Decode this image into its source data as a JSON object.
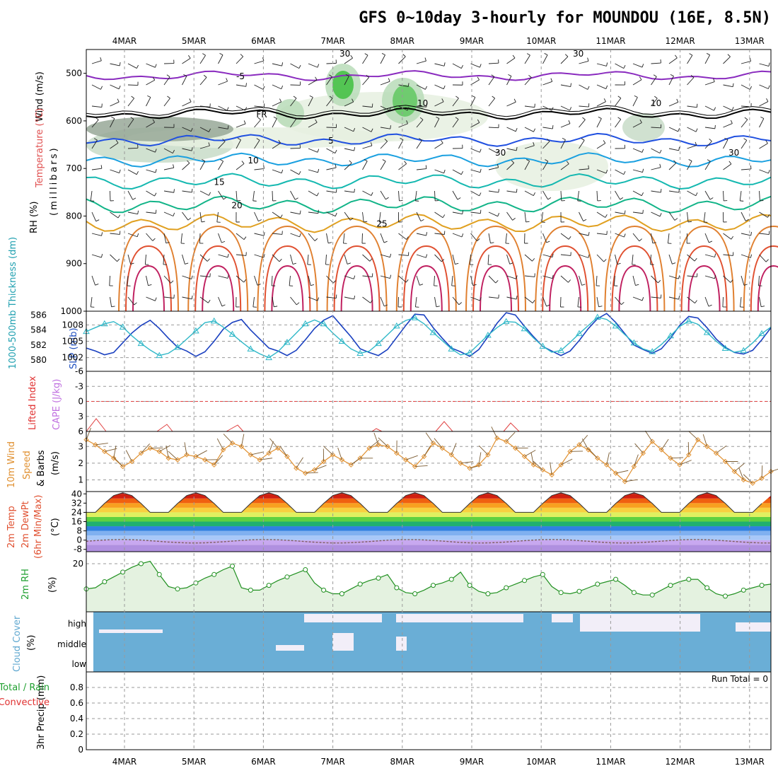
{
  "chart_data": {
    "type": "meteogram",
    "title": "GFS 0~10day 3-hourly for MOUNDOU (16E, 8.5N)",
    "x_dates": [
      "4MAR",
      "5MAR",
      "6MAR",
      "7MAR",
      "8MAR",
      "9MAR",
      "10MAR",
      "11MAR",
      "12MAR",
      "13MAR"
    ],
    "panels": {
      "upper_air": {
        "labels": [
          "Wind (m/s)",
          "Temperature (°C)",
          "RH (%)",
          "(millibars)"
        ],
        "y_ticks": [
          "500",
          "600",
          "700",
          "800",
          "900",
          "1000"
        ],
        "y_range": [
          450,
          1000
        ],
        "isotherms": [
          {
            "label": "-5",
            "level": 505,
            "color": "#8a2bbf"
          },
          {
            "label": "FR",
            "level": 585,
            "color": "#000000"
          },
          {
            "label": "5",
            "level": 640,
            "color": "#2050e0"
          },
          {
            "label": "10",
            "level": 682,
            "color": "#1aa0e0"
          },
          {
            "label": "15",
            "level": 727,
            "color": "#14b8b0"
          },
          {
            "label": "20",
            "level": 776,
            "color": "#12b488"
          },
          {
            "label": "25",
            "level": 815,
            "color": "#e0a020"
          }
        ],
        "rh_contour_labels": [
          "30",
          "10",
          "30",
          "30",
          "10",
          "30",
          "10"
        ]
      },
      "slp_thickness": {
        "labels": [
          "SLP (mb)",
          "1000-500mb Thickness (dm)"
        ],
        "thickness_ticks": [
          "586",
          "584",
          "582",
          "580"
        ],
        "slp_ticks": [
          "1008",
          "1005",
          "1002"
        ],
        "thickness_range": [
          578.5,
          586.5
        ],
        "slp_range": [
          999.5,
          1010.5
        ],
        "thickness": [
          581.6,
          581.2,
          580.7,
          581.0,
          582.3,
          583.6,
          584.6,
          585.3,
          584.2,
          582.9,
          581.7,
          581.2,
          580.5,
          581.1,
          582.5,
          584.1,
          585.0,
          585.4,
          584.0,
          582.8,
          581.6,
          581.2,
          580.6,
          581.3,
          582.7,
          584.2,
          585.3,
          585.9,
          584.5,
          583.1,
          581.5,
          581.0,
          580.6,
          581.4,
          583.0,
          584.6,
          586.1,
          586.0,
          584.3,
          582.9,
          581.6,
          581.1,
          580.5,
          581.4,
          583.1,
          584.9,
          586.3,
          586.0,
          584.5,
          583.1,
          581.8,
          581.2,
          580.6,
          581.2,
          582.6,
          584.2,
          585.5,
          586.2,
          585.0,
          583.5,
          582.0,
          581.4,
          580.9,
          581.5,
          582.9,
          584.6,
          585.8,
          585.6,
          584.3,
          582.8,
          581.7,
          581.0,
          580.8,
          581.3,
          582.7,
          584.3
        ],
        "slp": [
          1006.8,
          1007.5,
          1008.2,
          1008.6,
          1007.6,
          1006.0,
          1004.6,
          1003.4,
          1002.4,
          1002.8,
          1003.9,
          1005.4,
          1006.9,
          1008.4,
          1008.7,
          1007.6,
          1006.3,
          1004.9,
          1003.6,
          1002.7,
          1002.0,
          1003.1,
          1004.8,
          1006.5,
          1008.2,
          1008.9,
          1008.2,
          1006.5,
          1005.0,
          1003.6,
          1002.8,
          1003.2,
          1004.6,
          1006.2,
          1007.8,
          1008.8,
          1009.3,
          1008.2,
          1006.6,
          1005.1,
          1003.6,
          1002.5,
          1002.9,
          1004.5,
          1006.1,
          1007.5,
          1008.6,
          1008.5,
          1007.3,
          1005.6,
          1004.1,
          1003.0,
          1003.3,
          1004.8,
          1006.4,
          1007.9,
          1009.4,
          1009.0,
          1007.8,
          1006.2,
          1004.7,
          1003.6,
          1003.1,
          1004.4,
          1006.0,
          1007.7,
          1008.7,
          1008.1,
          1006.6,
          1005.0,
          1003.7,
          1003.0,
          1003.3,
          1004.7,
          1006.4,
          1007.6
        ]
      },
      "cape_li": {
        "labels": [
          "Lifted Index",
          "CAPE (J/kg)"
        ],
        "y_ticks": [
          "-6",
          "-3",
          "0",
          "3",
          "6"
        ],
        "y_range": [
          -6,
          6
        ]
      },
      "wind10m": {
        "labels": [
          "10m Wind",
          "Speed",
          "& Barbs",
          "(m/s)"
        ],
        "y_ticks": [
          "1",
          "2",
          "3"
        ],
        "y_range": [
          0.3,
          3.9
        ],
        "speed": [
          3.4,
          3.1,
          2.7,
          2.3,
          1.8,
          2.1,
          2.6,
          2.9,
          2.7,
          2.3,
          2.2,
          2.5,
          2.4,
          2.2,
          1.9,
          2.8,
          3.2,
          3.0,
          2.5,
          2.2,
          2.6,
          2.9,
          2.4,
          1.7,
          1.4,
          1.6,
          2.1,
          2.5,
          2.2,
          1.9,
          2.3,
          2.9,
          3.1,
          3.0,
          2.6,
          2.2,
          1.8,
          2.4,
          3.2,
          2.9,
          2.5,
          2.0,
          1.7,
          1.9,
          2.5,
          3.5,
          3.3,
          2.9,
          2.4,
          1.9,
          1.6,
          1.3,
          1.9,
          2.7,
          3.1,
          2.8,
          2.3,
          1.9,
          1.4,
          0.9,
          1.8,
          2.6,
          3.3,
          2.8,
          2.3,
          1.9,
          2.5,
          3.4,
          3.0,
          2.6,
          2.1,
          1.5,
          1.0,
          0.8,
          1.1,
          1.5
        ]
      },
      "temp2m": {
        "labels": [
          "2m Temp",
          "2m DewPt",
          "(6hr Min/Max)",
          "(°C)"
        ],
        "y_ticks": [
          "40",
          "32",
          "24",
          "16",
          "8",
          "0",
          "-8"
        ],
        "y_range": [
          -10,
          42
        ],
        "diurnal_max": 41,
        "diurnal_min": 24,
        "dewpoint_mean": -1
      },
      "rh2m": {
        "labels": [
          "2m RH",
          "(%)"
        ],
        "y_ticks": [
          "20"
        ],
        "y_range": [
          0,
          25
        ],
        "values": [
          9.5,
          10.0,
          12.5,
          14.5,
          16.5,
          18.5,
          20.0,
          21.0,
          15.5,
          10.5,
          9.5,
          10.0,
          12.0,
          14.0,
          15.5,
          17.5,
          19.0,
          10.0,
          9.0,
          9.0,
          11.0,
          13.0,
          14.5,
          16.0,
          17.5,
          12.0,
          9.0,
          7.5,
          7.5,
          9.5,
          11.5,
          13.0,
          14.0,
          15.5,
          10.0,
          8.0,
          7.5,
          9.0,
          11.0,
          12.0,
          13.5,
          16.5,
          11.0,
          8.5,
          7.5,
          8.0,
          10.0,
          11.5,
          13.0,
          14.5,
          15.5,
          10.5,
          8.0,
          7.5,
          8.5,
          10.0,
          11.5,
          12.5,
          13.5,
          11.0,
          8.0,
          7.0,
          7.0,
          9.0,
          11.0,
          12.5,
          13.5,
          13.5,
          10.0,
          7.5,
          6.5,
          7.5,
          9.0,
          10.0,
          11.0,
          11.5
        ]
      },
      "cloud": {
        "labels": [
          "Cloud Cover",
          "(%)"
        ],
        "levels": [
          "high",
          "middle",
          "low"
        ]
      },
      "precip": {
        "labels": [
          "3hr Precip (mm)",
          "Total / Rain",
          "Convective"
        ],
        "y_ticks": [
          "0",
          "0.2",
          "0.4",
          "0.6",
          "0.8"
        ],
        "y_range": [
          0,
          1.0
        ],
        "run_total": "Run Total = 0"
      }
    }
  }
}
